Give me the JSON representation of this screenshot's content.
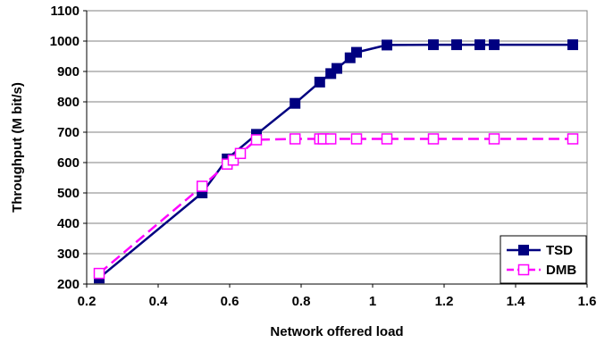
{
  "chart_data": {
    "type": "line",
    "xlabel": "Network offered load",
    "ylabel": "Throughput (M bit/s)",
    "xlim": [
      0.2,
      1.6
    ],
    "ylim": [
      200,
      1100
    ],
    "xticks": [
      "0.2",
      "0.4",
      "0.6",
      "0.8",
      "1",
      "1.2",
      "1.4",
      "1.6"
    ],
    "yticks": [
      "200",
      "300",
      "400",
      "500",
      "600",
      "700",
      "800",
      "900",
      "1000",
      "1100"
    ],
    "grid": "horizontal",
    "legend_position": "bottom-right",
    "series": [
      {
        "name": "TSD",
        "color": "#000080",
        "line_style": "solid",
        "marker": "filled-square",
        "x": [
          0.235,
          0.523,
          0.593,
          0.675,
          0.783,
          0.852,
          0.883,
          0.9,
          0.937,
          0.955,
          1.04,
          1.17,
          1.235,
          1.3,
          1.34,
          1.56
        ],
        "y": [
          220,
          500,
          612,
          693,
          795,
          865,
          893,
          910,
          945,
          963,
          987,
          988,
          988,
          988,
          988,
          988
        ]
      },
      {
        "name": "DMB",
        "color": "#FF00FF",
        "line_style": "dashed",
        "marker": "hollow-square",
        "x": [
          0.235,
          0.523,
          0.593,
          0.61,
          0.63,
          0.675,
          0.783,
          0.852,
          0.862,
          0.883,
          0.955,
          1.04,
          1.17,
          1.34,
          1.56
        ],
        "y": [
          235,
          522,
          595,
          608,
          630,
          675,
          678,
          678,
          678,
          678,
          678,
          678,
          678,
          678,
          678
        ]
      }
    ]
  }
}
